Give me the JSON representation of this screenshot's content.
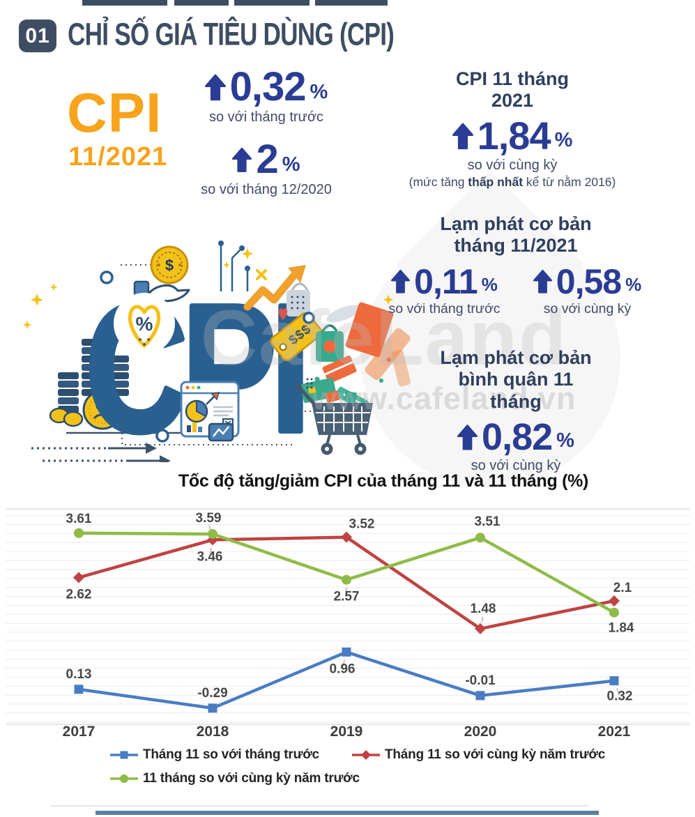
{
  "colors": {
    "orange": "#f7a31c",
    "number_blue": "#2a3c93",
    "heading_navy": "#2e3f5e",
    "caption_navy": "#3e4a68",
    "header_slate": "#3d4e63",
    "divider_blue": "#5d7f9f"
  },
  "header": {
    "badge": "01",
    "title": "CHỈ SỐ GIÁ TIÊU DÙNG (CPI)"
  },
  "cpi_badge": {
    "label": "CPI",
    "period": "11/2021"
  },
  "stats": {
    "mom": {
      "value": "0,32",
      "unit": "%",
      "caption": "so với tháng trước"
    },
    "vs_dec": {
      "value": "2",
      "unit": "%",
      "caption": "so với tháng 12/2020"
    },
    "cpi_11m": {
      "heading": "CPI 11 tháng 2021",
      "value": "1,84",
      "unit": "%",
      "caption": "so với cùng kỳ",
      "note_prefix": "(mức tăng ",
      "note_bold": "thấp nhất",
      "note_suffix": " kể từ nằm 2016)"
    },
    "core_month": {
      "heading": "Lạm phát cơ bản tháng 11/2021",
      "mom": {
        "value": "0,11",
        "unit": "%",
        "caption": "so với tháng trước"
      },
      "yoy": {
        "value": "0,58",
        "unit": "%",
        "caption": "so với cùng kỳ"
      }
    },
    "core_avg": {
      "heading": "Lạm phát cơ bản bình quân 11 tháng",
      "value": "0,82",
      "unit": "%",
      "caption": "so với cùng kỳ"
    }
  },
  "illustration": {
    "label": "CPI",
    "price_tag": "$$$",
    "coin_symbol": "$",
    "percent": "%"
  },
  "watermark": {
    "brand": "CafeLand",
    "url": "www.cafeland.vn"
  },
  "chart_data": {
    "type": "line",
    "title": "Tốc độ tăng/giảm CPI của tháng 11 và 11 tháng (%)",
    "categories": [
      "2017",
      "2018",
      "2019",
      "2020",
      "2021"
    ],
    "series": [
      {
        "name": "Tháng 11 so với tháng trước",
        "color": "#4a7cc4",
        "marker": "square",
        "values": [
          0.13,
          -0.29,
          0.96,
          -0.01,
          0.32
        ],
        "label_pos": [
          [
            0,
            -16,
            0
          ],
          [
            0,
            -16,
            0
          ],
          [
            -6,
            30,
            1
          ],
          [
            0,
            -16,
            0
          ],
          [
            8,
            28,
            1
          ]
        ]
      },
      {
        "name": "Tháng 11 so với cùng kỳ năm trước",
        "color": "#bf4342",
        "marker": "diamond",
        "values": [
          2.62,
          3.46,
          3.52,
          1.48,
          2.1
        ],
        "label_pos": [
          [
            0,
            30,
            0
          ],
          [
            -4,
            30,
            1
          ],
          [
            22,
            -13,
            0
          ],
          [
            4,
            -23,
            1
          ],
          [
            12,
            -13,
            0
          ]
        ]
      },
      {
        "name": "11 tháng so với cùng kỳ năm trước",
        "color": "#8fbb47",
        "marker": "circle",
        "values": [
          3.61,
          3.59,
          2.57,
          3.51,
          1.84
        ],
        "label_pos": [
          [
            0,
            -15,
            0
          ],
          [
            -6,
            -17,
            1
          ],
          [
            0,
            30,
            1
          ],
          [
            10,
            -17,
            0
          ],
          [
            10,
            28,
            0
          ]
        ]
      }
    ],
    "ylim": [
      -0.65,
      4.15
    ],
    "grid": true,
    "legend_position": "bottom"
  }
}
